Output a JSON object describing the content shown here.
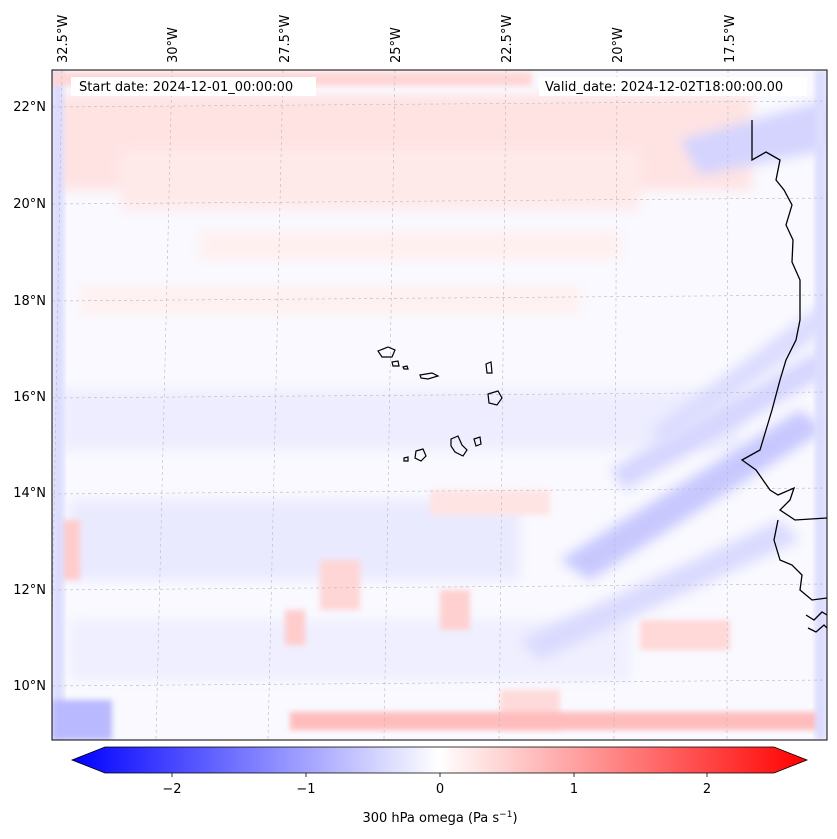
{
  "map": {
    "start_label": "Start date: 2024-12-01_00:00:00",
    "valid_label": "Valid_date: 2024-12-02T18:00:00.00",
    "lon_labels": [
      "32.5°W",
      "30°W",
      "27.5°W",
      "25°W",
      "22.5°W",
      "20°W",
      "17.5°W"
    ],
    "lat_labels": [
      "22°N",
      "20°N",
      "18°N",
      "16°N",
      "14°N",
      "12°N",
      "10°N"
    ],
    "colorbar": {
      "ticks": [
        "−2",
        "−1",
        "0",
        "1",
        "2"
      ],
      "label_main": "300 hPa omega (Pa s",
      "label_sup": "−1",
      "label_end": ")",
      "colors": {
        "low": "#0000ff",
        "mid": "#ffffff",
        "high": "#ff0000"
      }
    },
    "coastline_color": "#000000"
  }
}
